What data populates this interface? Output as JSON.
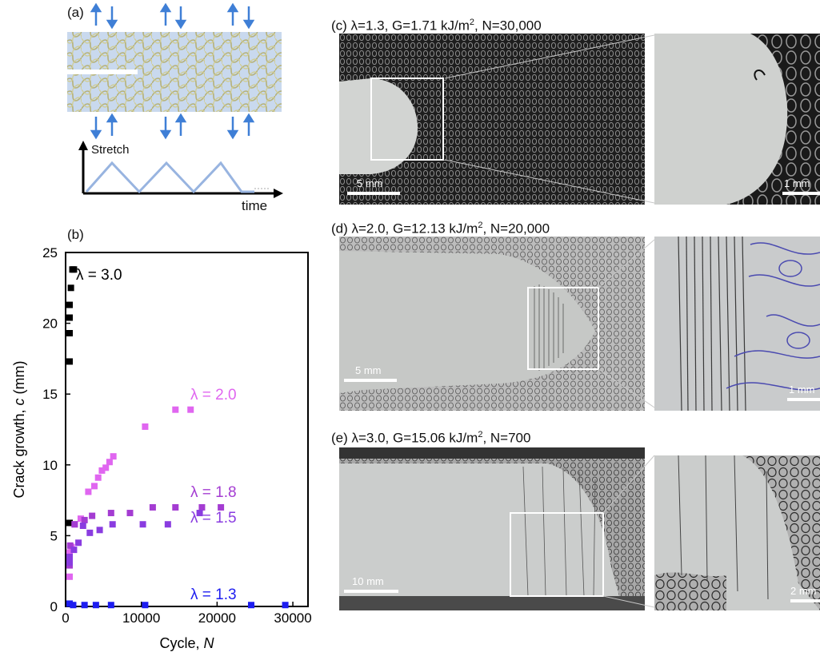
{
  "panel_a": {
    "label": "(a)",
    "stretch_label": "Stretch",
    "time_label": "time"
  },
  "panel_b": {
    "label": "(b)"
  },
  "panel_c": {
    "label": "(c) λ=1.3,   G=1.71 kJ/m",
    "label_sup": "2",
    "label_tail": ", N=30,000",
    "scale_main": "5 mm",
    "scale_zoom": "1 mm"
  },
  "panel_d": {
    "label": "(d) λ=2.0,   G=12.13 kJ/m",
    "label_sup": "2",
    "label_tail": ", N=20,000",
    "scale_main": "5 mm",
    "scale_zoom": "1 mm"
  },
  "panel_e": {
    "label": "(e) λ=3.0,   G=15.06 kJ/m",
    "label_sup": "2",
    "label_tail": ", N=700",
    "scale_main": "10 mm",
    "scale_zoom": "2 mm"
  },
  "colors": {
    "arrow": "#3f7fd6",
    "fabric": "#c9d9ee",
    "signal": "#98b4e0",
    "s30": "#000000",
    "s20": "#e066f0",
    "s18": "#a43cd2",
    "s15": "#8a3ce0",
    "s13": "#1d1df0"
  },
  "chart_data": {
    "type": "scatter",
    "xlabel": "Cycle, ",
    "xlabel_italic": "N",
    "ylabel": "Crack growth, ",
    "ylabel_italic": "c",
    "ylabel_unit": " (mm)",
    "xlim": [
      0,
      32000
    ],
    "ylim": [
      0,
      25
    ],
    "xticks": [
      0,
      10000,
      20000,
      30000
    ],
    "yticks": [
      0,
      5,
      10,
      15,
      20,
      25
    ],
    "xtick_labels": [
      "0",
      "10000",
      "20000",
      "30000"
    ],
    "ytick_labels": [
      "0",
      "5",
      "10",
      "15",
      "20",
      "25"
    ],
    "series": [
      {
        "name": "λ = 3.0",
        "color": "#000000",
        "points": [
          [
            50,
            3.8
          ],
          [
            100,
            5.9
          ],
          [
            150,
            17.3
          ],
          [
            200,
            19.3
          ],
          [
            350,
            20.4
          ],
          [
            500,
            21.3
          ],
          [
            700,
            22.5
          ],
          [
            900,
            23.8
          ],
          [
            1100,
            23.8
          ]
        ]
      },
      {
        "name": "λ = 2.0",
        "color": "#e066f0",
        "points": [
          [
            100,
            2.1
          ],
          [
            300,
            3.0
          ],
          [
            500,
            3.8
          ],
          [
            800,
            4.2
          ],
          [
            1200,
            5.8
          ],
          [
            2000,
            6.2
          ],
          [
            3000,
            8.1
          ],
          [
            3800,
            8.5
          ],
          [
            4300,
            9.1
          ],
          [
            4800,
            9.6
          ],
          [
            5300,
            9.8
          ],
          [
            5800,
            10.2
          ],
          [
            6300,
            10.6
          ],
          [
            10500,
            12.7
          ],
          [
            14500,
            13.9
          ],
          [
            16500,
            13.9
          ]
        ]
      },
      {
        "name": "λ = 1.8",
        "color": "#a43cd2",
        "points": [
          [
            200,
            2.9
          ],
          [
            600,
            4.3
          ],
          [
            1200,
            5.8
          ],
          [
            2500,
            6.1
          ],
          [
            3500,
            6.4
          ],
          [
            6000,
            6.6
          ],
          [
            8500,
            6.6
          ],
          [
            11500,
            7.0
          ],
          [
            14500,
            7.0
          ],
          [
            18000,
            7.0
          ],
          [
            20500,
            7.0
          ]
        ]
      },
      {
        "name": "λ = 1.5",
        "color": "#8a3ce0",
        "points": [
          [
            100,
            3.1
          ],
          [
            500,
            3.5
          ],
          [
            1100,
            4.0
          ],
          [
            1700,
            4.5
          ],
          [
            2300,
            5.7
          ],
          [
            3200,
            5.2
          ],
          [
            4500,
            5.4
          ],
          [
            6200,
            5.8
          ],
          [
            10200,
            5.8
          ],
          [
            13500,
            5.8
          ],
          [
            17700,
            6.6
          ]
        ]
      },
      {
        "name": "λ = 1.3",
        "color": "#1d1df0",
        "points": [
          [
            0,
            0.2
          ],
          [
            1000,
            0.1
          ],
          [
            2500,
            0.1
          ],
          [
            4000,
            0.1
          ],
          [
            6000,
            0.1
          ],
          [
            10500,
            0.1
          ],
          [
            24500,
            0.1
          ],
          [
            29000,
            0.1
          ]
        ]
      }
    ],
    "annotations": [
      {
        "text": "λ = 3.0",
        "color": "#000000"
      },
      {
        "text": "λ = 2.0",
        "color": "#e066f0"
      },
      {
        "text": "λ = 1.8",
        "color": "#a43cd2"
      },
      {
        "text": "λ = 1.5",
        "color": "#8a3ce0"
      },
      {
        "text": "λ = 1.3",
        "color": "#1d1df0"
      }
    ]
  }
}
